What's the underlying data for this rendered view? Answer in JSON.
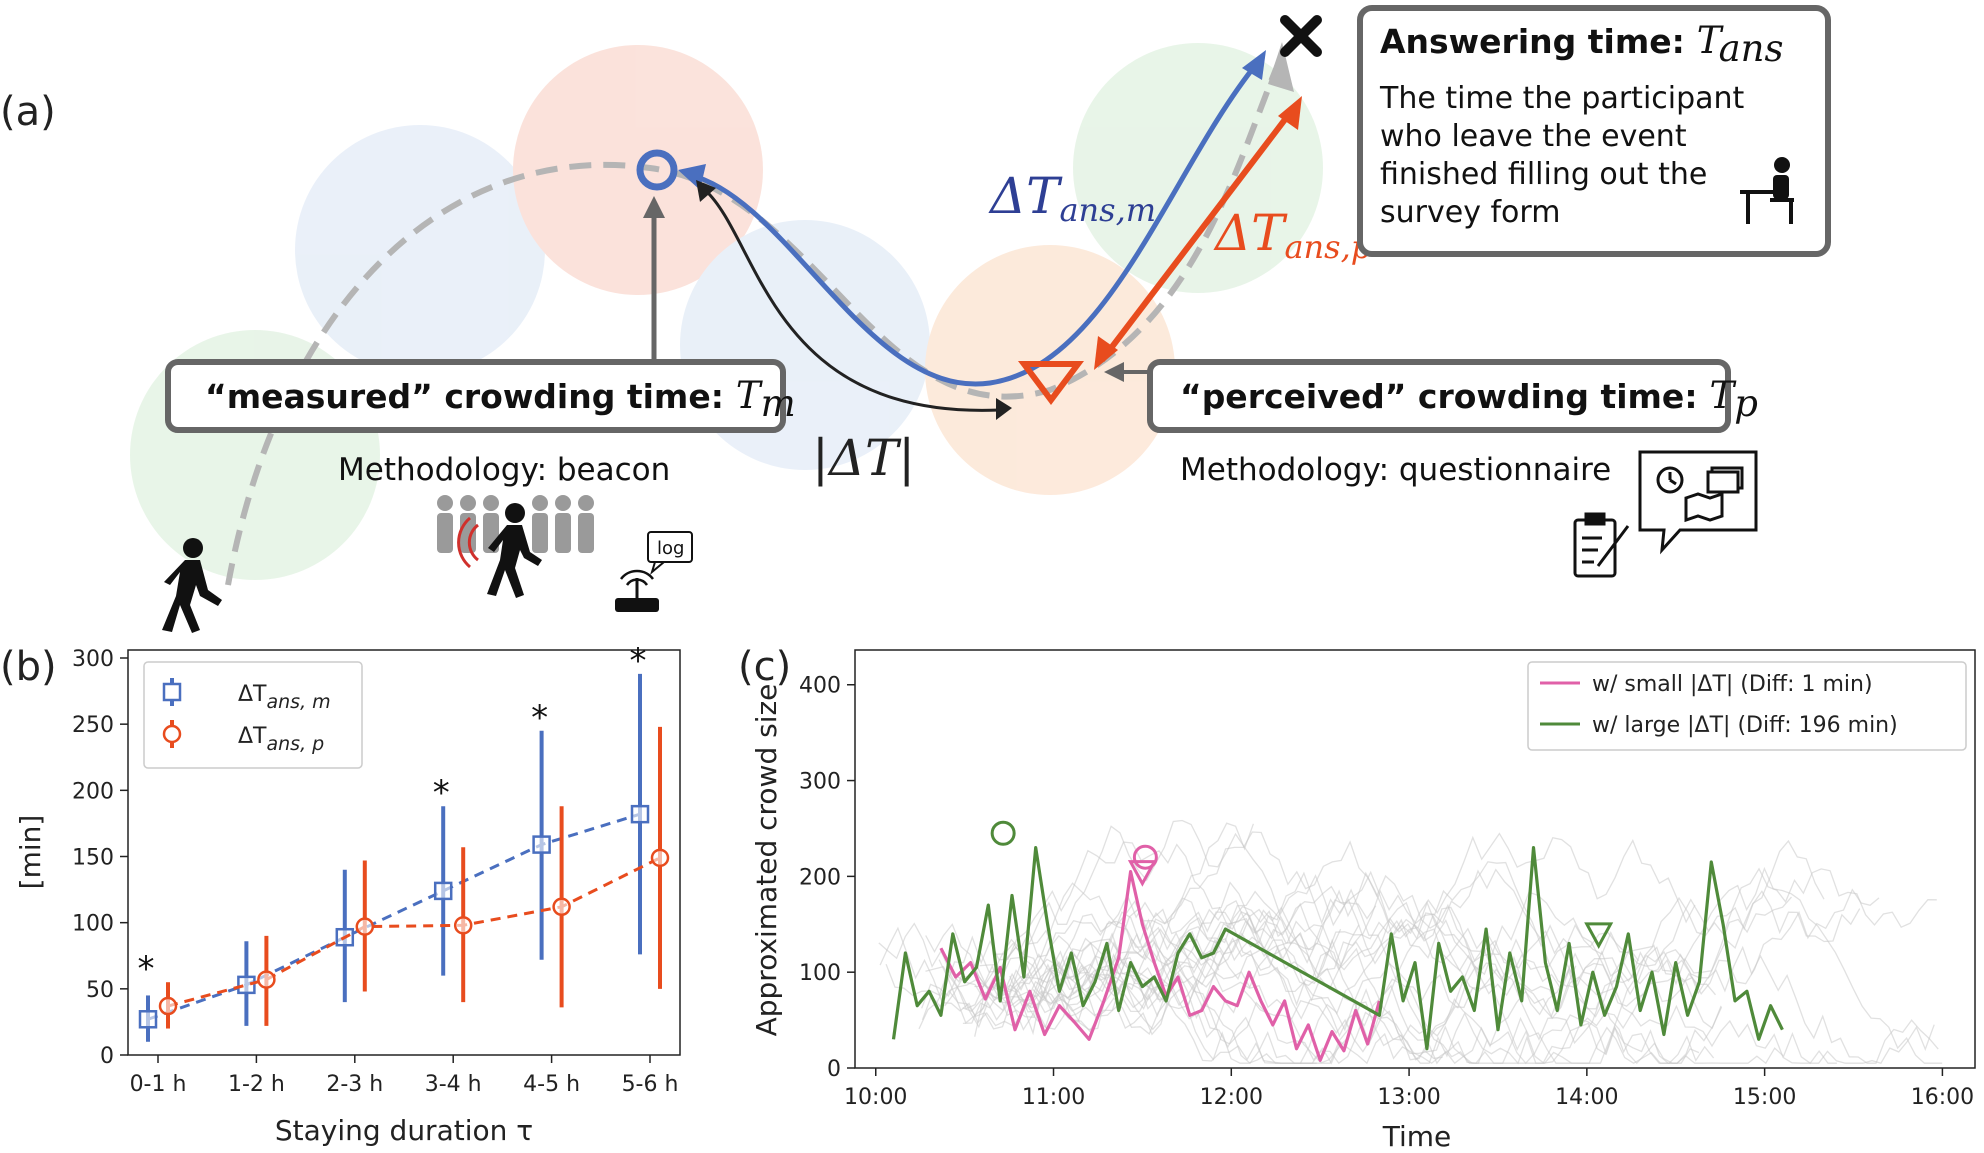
{
  "panel_a": {
    "letter": "(a)",
    "measured_box": {
      "title": "“measured” crowding time",
      "colon": ":",
      "symbol": "T",
      "sub": "m"
    },
    "measured_method": "Methodology: beacon",
    "perceived_box": {
      "title": "“perceived” crowding time",
      "colon": ":",
      "symbol": "T",
      "sub": "p"
    },
    "perceived_method": "Methodology: questionnaire",
    "answer_box": {
      "title": "Answering time",
      "colon": ":",
      "symbol": "T",
      "sub": "ans",
      "lines": [
        "The time the participant",
        "who leave the event",
        "finished filling out the",
        "survey form"
      ]
    },
    "delta_m_label": "ΔT",
    "delta_m_sub": "ans,m",
    "delta_p_label": "ΔT",
    "delta_p_sub": "ans,p",
    "abs_delta_label": "|ΔT|",
    "log_label": "log",
    "colors": {
      "blue": "#4a6fbf",
      "red": "#e84c1e",
      "gray": "#a9a9a9",
      "dark": "#333333"
    }
  },
  "chart_data": [
    {
      "panel": "(b)",
      "type": "line",
      "categories": [
        "0-1 h",
        "1-2 h",
        "2-3 h",
        "3-4 h",
        "4-5 h",
        "5-6 h"
      ],
      "xlabel": "Staying duration τ",
      "ylabel": "[min]",
      "ylim": [
        0,
        300
      ],
      "yticks": [
        0,
        50,
        100,
        150,
        200,
        250,
        300
      ],
      "legend_position": "top-left",
      "series": [
        {
          "name": "ΔT",
          "name_sub": "ans, m",
          "color": "#4a6fbf",
          "marker": "square",
          "values": [
            27,
            53,
            89,
            124,
            159,
            182
          ],
          "err_low": [
            10,
            22,
            40,
            60,
            72,
            76
          ],
          "err_high": [
            45,
            86,
            140,
            188,
            245,
            288
          ]
        },
        {
          "name": "ΔT",
          "name_sub": "ans, p",
          "color": "#e84c1e",
          "marker": "circle",
          "values": [
            37,
            57,
            97,
            98,
            112,
            149
          ],
          "err_low": [
            20,
            22,
            48,
            40,
            36,
            50
          ],
          "err_high": [
            55,
            90,
            147,
            157,
            188,
            248
          ]
        }
      ],
      "significance": {
        "marker": "*",
        "categories": [
          "0-1 h",
          "3-4 h",
          "4-5 h",
          "5-6 h"
        ]
      }
    },
    {
      "panel": "(c)",
      "type": "line",
      "xlabel": "Time",
      "ylabel": "Approximated crowd size",
      "xlim": [
        "10:00",
        "16:00"
      ],
      "ylim": [
        0,
        430
      ],
      "xticks": [
        "10:00",
        "11:00",
        "12:00",
        "13:00",
        "14:00",
        "15:00",
        "16:00"
      ],
      "yticks": [
        0,
        100,
        200,
        300,
        400
      ],
      "legend_position": "top-right",
      "background_traces": "many light gray traces of other participants",
      "series": [
        {
          "name": "w/ small |ΔT| (Diff: 1 min)",
          "color": "#e060a8",
          "x": [
            "10:22",
            "10:27",
            "10:32",
            "10:37",
            "10:42",
            "10:47",
            "10:52",
            "10:57",
            "11:02",
            "11:07",
            "11:12",
            "11:17",
            "11:22",
            "11:26",
            "11:30",
            "11:34",
            "11:38",
            "11:42",
            "11:46",
            "11:50",
            "11:54",
            "11:58",
            "12:02",
            "12:06",
            "12:10",
            "12:14",
            "12:18",
            "12:22",
            "12:26",
            "12:30",
            "12:34",
            "12:38",
            "12:42",
            "12:46",
            "12:50"
          ],
          "y": [
            125,
            95,
            110,
            72,
            105,
            40,
            80,
            35,
            65,
            48,
            30,
            70,
            115,
            205,
            150,
            110,
            75,
            95,
            55,
            60,
            85,
            70,
            65,
            100,
            70,
            45,
            70,
            20,
            45,
            8,
            38,
            18,
            60,
            25,
            70
          ]
        },
        {
          "name": "w/ large |ΔT| (Diff: 196 min)",
          "color": "#4f8a3a",
          "x": [
            "10:06",
            "10:10",
            "10:14",
            "10:18",
            "10:22",
            "10:26",
            "10:30",
            "10:34",
            "10:38",
            "10:42",
            "10:46",
            "10:50",
            "10:54",
            "10:58",
            "11:02",
            "11:06",
            "11:10",
            "11:14",
            "11:18",
            "11:22",
            "11:26",
            "11:30",
            "11:34",
            "11:38",
            "11:42",
            "11:46",
            "11:50",
            "11:54",
            "11:58",
            "12:50",
            "12:54",
            "12:58",
            "13:02",
            "13:06",
            "13:10",
            "13:14",
            "13:18",
            "13:22",
            "13:26",
            "13:30",
            "13:34",
            "13:38",
            "13:42",
            "13:46",
            "13:50",
            "13:54",
            "13:58",
            "14:02",
            "14:06",
            "14:10",
            "14:14",
            "14:18",
            "14:22",
            "14:26",
            "14:30",
            "14:34",
            "14:38",
            "14:42",
            "14:46",
            "14:50",
            "14:54",
            "14:58",
            "15:02",
            "15:06"
          ],
          "y": [
            30,
            120,
            65,
            80,
            55,
            140,
            90,
            105,
            170,
            70,
            180,
            95,
            230,
            150,
            80,
            120,
            65,
            90,
            130,
            60,
            110,
            85,
            95,
            70,
            120,
            140,
            115,
            120,
            145,
            55,
            140,
            70,
            110,
            20,
            130,
            80,
            95,
            60,
            145,
            40,
            120,
            70,
            230,
            110,
            60,
            130,
            45,
            100,
            55,
            85,
            140,
            60,
            100,
            35,
            110,
            55,
            90,
            215,
            150,
            70,
            80,
            30,
            65,
            40
          ]
        }
      ],
      "markers": [
        {
          "series": "w/ small |ΔT| (Diff: 1 min)",
          "symbol": "circle",
          "x": "11:31",
          "y": 220
        },
        {
          "series": "w/ small |ΔT| (Diff: 1 min)",
          "symbol": "triangle-down",
          "x": "11:30",
          "y": 205
        },
        {
          "series": "w/ large |ΔT| (Diff: 196 min)",
          "symbol": "circle",
          "x": "10:43",
          "y": 245
        },
        {
          "series": "w/ large |ΔT| (Diff: 196 min)",
          "symbol": "triangle-down",
          "x": "14:04",
          "y": 140
        }
      ]
    }
  ]
}
